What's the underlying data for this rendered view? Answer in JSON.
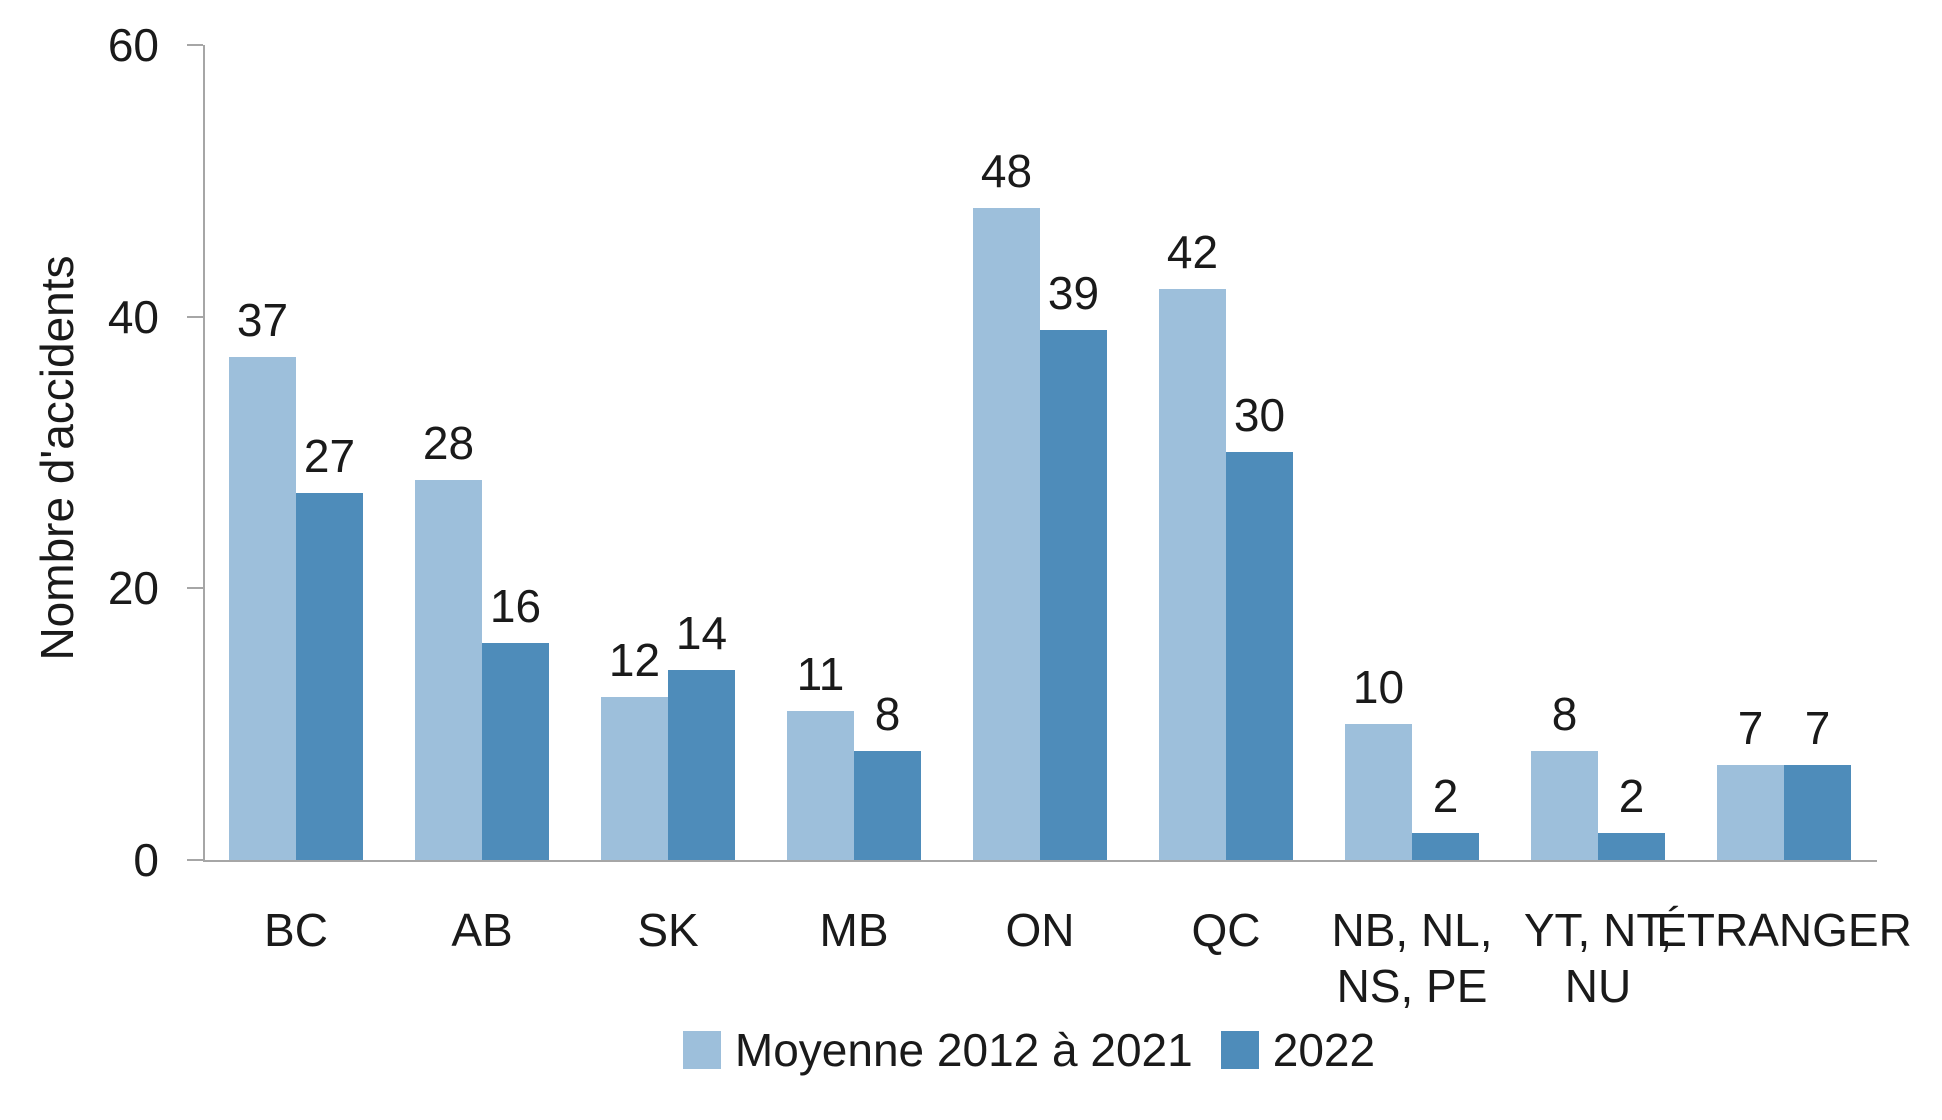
{
  "chart_data": {
    "type": "bar",
    "title": "",
    "ylabel": "Nombre d'accidents",
    "xlabel": "",
    "ylim": [
      0,
      60
    ],
    "yticks": [
      0,
      20,
      40,
      60
    ],
    "grid": false,
    "legend_position": "bottom-center",
    "categories": [
      "BC",
      "AB",
      "SK",
      "MB",
      "ON",
      "QC",
      "NB, NL, NS, PE",
      "YT, NT, NU",
      "ÉTRANGER"
    ],
    "category_label_lines": [
      [
        "BC"
      ],
      [
        "AB"
      ],
      [
        "SK"
      ],
      [
        "MB"
      ],
      [
        "ON"
      ],
      [
        "QC"
      ],
      [
        "NB, NL,",
        "NS, PE"
      ],
      [
        "YT, NT,",
        "NU"
      ],
      [
        "ÉTRANGER"
      ]
    ],
    "series": [
      {
        "name": "Moyenne 2012 à 2021",
        "color": "#9DBFDB",
        "values": [
          37,
          28,
          12,
          11,
          48,
          42,
          10,
          8,
          7
        ]
      },
      {
        "name": "2022",
        "color": "#4E8CBA",
        "values": [
          27,
          16,
          14,
          8,
          39,
          30,
          2,
          2,
          7
        ]
      }
    ]
  },
  "colors": {
    "axis": "#A6A6A6",
    "text": "#1A1A1A",
    "background": "#FFFFFF"
  }
}
